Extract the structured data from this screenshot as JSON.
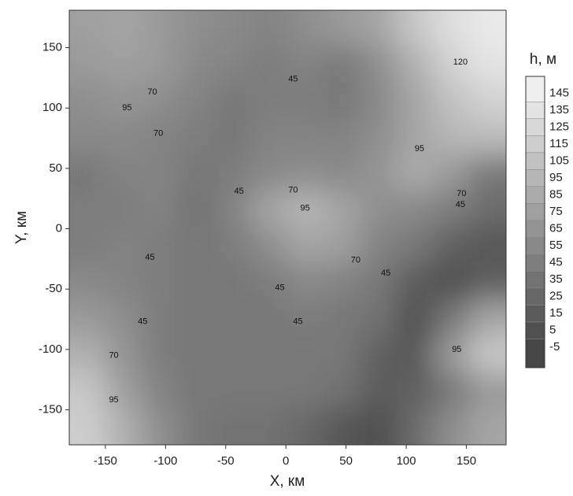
{
  "chart_data": {
    "type": "contour",
    "x_label": "X, км",
    "y_label": "Y, км",
    "xlim": [
      -180,
      183
    ],
    "ylim": [
      -179,
      181
    ],
    "xticks": [
      -150,
      -100,
      -50,
      0,
      50,
      100,
      150
    ],
    "yticks": [
      -150,
      -100,
      -50,
      0,
      50,
      100,
      150
    ],
    "z": [
      [
        75,
        80,
        70,
        60,
        55,
        50,
        60,
        70,
        80,
        110,
        130,
        140
      ],
      [
        70,
        75,
        70,
        55,
        50,
        45,
        50,
        40,
        60,
        90,
        120,
        135
      ],
      [
        60,
        65,
        60,
        50,
        40,
        45,
        45,
        40,
        55,
        80,
        105,
        120
      ],
      [
        55,
        55,
        50,
        45,
        40,
        50,
        50,
        50,
        60,
        80,
        95,
        100
      ],
      [
        40,
        50,
        50,
        40,
        45,
        55,
        60,
        55,
        65,
        85,
        70,
        40
      ],
      [
        45,
        45,
        50,
        35,
        50,
        80,
        95,
        80,
        60,
        55,
        45,
        30
      ],
      [
        45,
        50,
        45,
        40,
        45,
        60,
        80,
        75,
        50,
        40,
        20,
        10
      ],
      [
        55,
        50,
        45,
        40,
        40,
        45,
        55,
        50,
        40,
        15,
        5,
        20
      ],
      [
        70,
        60,
        45,
        40,
        40,
        40,
        45,
        40,
        35,
        5,
        40,
        80
      ],
      [
        90,
        65,
        45,
        40,
        40,
        40,
        40,
        40,
        20,
        10,
        70,
        110
      ],
      [
        110,
        75,
        50,
        40,
        40,
        40,
        40,
        35,
        15,
        20,
        40,
        70
      ],
      [
        115,
        90,
        60,
        40,
        35,
        35,
        25,
        10,
        5,
        30,
        60,
        80
      ]
    ],
    "contour_labels": [
      {
        "x": -111,
        "y": 113,
        "label": 70
      },
      {
        "x": 6,
        "y": 124,
        "label": 45
      },
      {
        "x": 145,
        "y": 138,
        "label": 120
      },
      {
        "x": -132,
        "y": 100,
        "label": 95
      },
      {
        "x": -106,
        "y": 79,
        "label": 70
      },
      {
        "x": -39,
        "y": 31,
        "label": 45
      },
      {
        "x": 6,
        "y": 32,
        "label": 70
      },
      {
        "x": 16,
        "y": 17,
        "label": 95
      },
      {
        "x": 58,
        "y": -26,
        "label": 70
      },
      {
        "x": 111,
        "y": 66,
        "label": 95
      },
      {
        "x": 146,
        "y": 29,
        "label": 70
      },
      {
        "x": 145,
        "y": 20,
        "label": 45
      },
      {
        "x": -113,
        "y": -24,
        "label": 45
      },
      {
        "x": -5,
        "y": -49,
        "label": 45
      },
      {
        "x": 83,
        "y": -37,
        "label": 45
      },
      {
        "x": -119,
        "y": -77,
        "label": 45
      },
      {
        "x": 10,
        "y": -77,
        "label": 45
      },
      {
        "x": -143,
        "y": -105,
        "label": 70
      },
      {
        "x": -143,
        "y": -142,
        "label": 95
      },
      {
        "x": 142,
        "y": -100,
        "label": 95
      }
    ],
    "colorbar": {
      "title": "h, м",
      "lim": [
        -17,
        155
      ],
      "ticks": [
        -5,
        5,
        15,
        25,
        35,
        45,
        55,
        65,
        75,
        85,
        95,
        105,
        115,
        125,
        135,
        145
      ]
    }
  }
}
